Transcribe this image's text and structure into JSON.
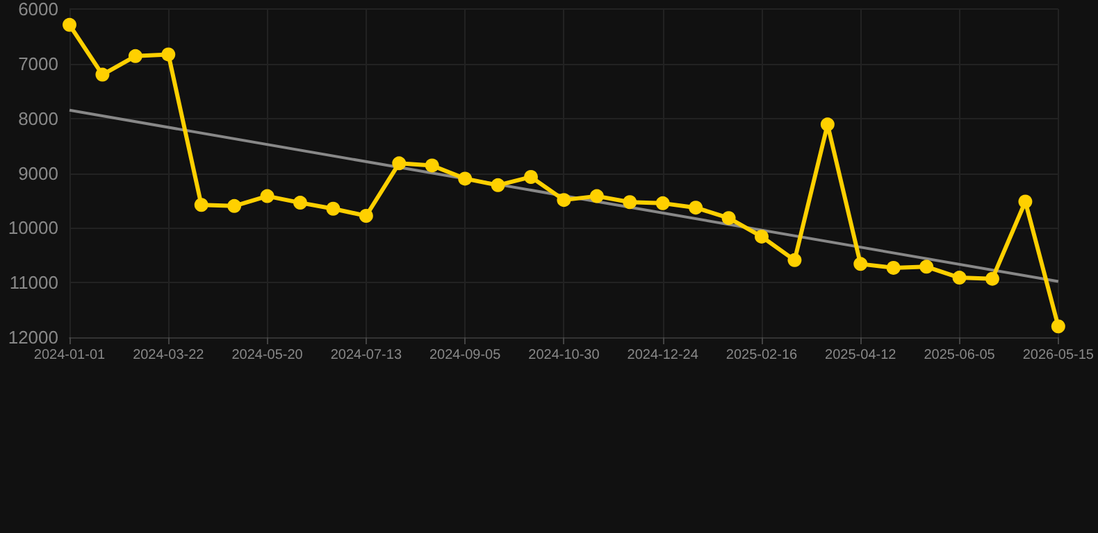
{
  "chart_data": {
    "type": "line",
    "categories": [
      "2024-01-01",
      null,
      null,
      "2024-03-22",
      null,
      null,
      "2024-05-20",
      null,
      null,
      "2024-07-13",
      null,
      null,
      "2024-09-05",
      null,
      null,
      "2024-10-30",
      null,
      null,
      "2024-12-24",
      null,
      null,
      "2025-02-16",
      null,
      null,
      "2025-04-12",
      null,
      null,
      "2025-06-05",
      null,
      null,
      "2026-05-15"
    ],
    "series": [
      {
        "color": "#ffd000",
        "marker": "circle",
        "values": [
          6290,
          7200,
          6860,
          6830,
          9580,
          9600,
          9420,
          9540,
          9650,
          9780,
          8820,
          8860,
          9100,
          9220,
          9070,
          9490,
          9420,
          9530,
          9550,
          9630,
          9820,
          10160,
          10590,
          8110,
          10660,
          10730,
          10710,
          10910,
          10930,
          9520,
          11800
        ]
      },
      {
        "type": "line",
        "color": "#888888",
        "marker": "none",
        "values": [
          7850,
          null,
          null,
          null,
          null,
          null,
          null,
          null,
          null,
          null,
          null,
          null,
          null,
          null,
          null,
          null,
          null,
          null,
          null,
          null,
          null,
          null,
          null,
          null,
          null,
          null,
          null,
          null,
          null,
          null,
          10980
        ]
      }
    ],
    "ylim": [
      12000,
      6000
    ],
    "yticks": [
      6000,
      7000,
      8000,
      9000,
      10000,
      11000,
      12000
    ],
    "grid": true
  }
}
